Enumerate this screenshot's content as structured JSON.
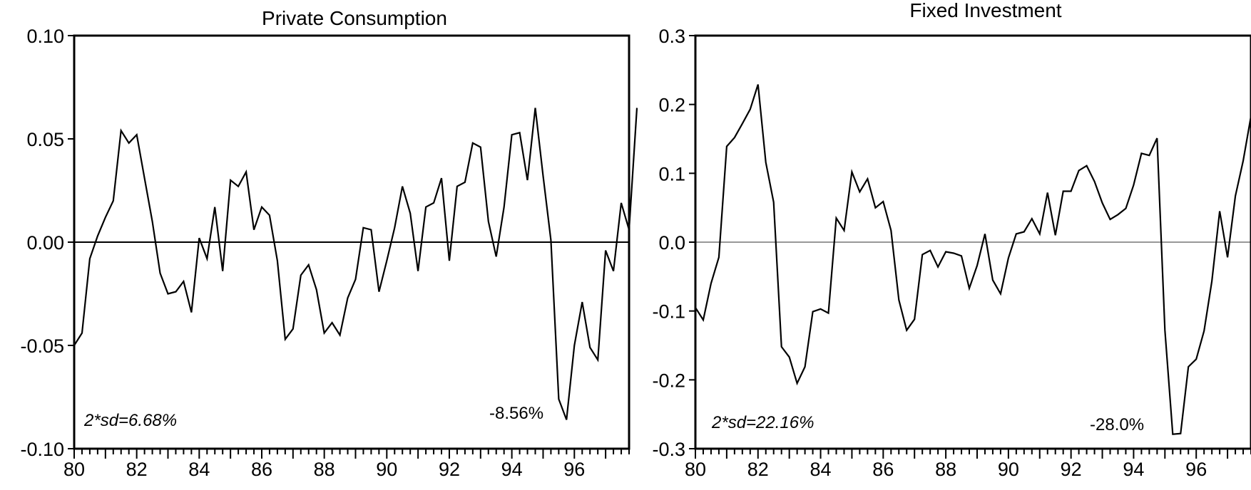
{
  "chart_data": [
    {
      "type": "line",
      "title": "Private Consumption",
      "xlabel": "",
      "ylabel": "",
      "ylim": [
        -0.1,
        0.1
      ],
      "xlim": [
        1980,
        1997.75
      ],
      "yticks": [
        "-0.10",
        "-0.05",
        "0.00",
        "0.05",
        "0.10"
      ],
      "xticks": [
        "80",
        "82",
        "84",
        "86",
        "88",
        "90",
        "92",
        "94",
        "96"
      ],
      "zero_line": true,
      "annotations": {
        "sd": "2*sd=6.68%",
        "min": "-8.56%"
      },
      "series": [
        {
          "x_start": 1980.0,
          "x_step": 0.25,
          "values": [
            -0.05,
            -0.044,
            -0.008,
            0.003,
            0.012,
            0.02,
            0.054,
            0.048,
            0.052,
            0.031,
            0.01,
            -0.015,
            -0.025,
            -0.024,
            -0.019,
            -0.034,
            0.002,
            -0.008,
            0.017,
            -0.014,
            0.03,
            0.027,
            0.034,
            0.006,
            0.017,
            0.013,
            -0.009,
            -0.047,
            -0.042,
            -0.016,
            -0.011,
            -0.023,
            -0.044,
            -0.039,
            -0.045,
            -0.027,
            -0.018,
            0.007,
            0.006,
            -0.024,
            -0.009,
            0.007,
            0.027,
            0.014,
            -0.014,
            0.017,
            0.019,
            0.031,
            -0.009,
            0.027,
            0.029,
            0.048,
            0.046,
            0.01,
            -0.007,
            0.017,
            0.052,
            0.053,
            0.03,
            0.065,
            0.032,
            0.001,
            -0.076,
            -0.086,
            -0.05,
            -0.029,
            -0.051,
            -0.057,
            -0.004,
            -0.014,
            0.019,
            0.006,
            0.065
          ]
        }
      ]
    },
    {
      "type": "line",
      "title": "Fixed Investment",
      "xlabel": "",
      "ylabel": "",
      "ylim": [
        -0.3,
        0.3
      ],
      "xlim": [
        1980,
        1997.75
      ],
      "yticks": [
        "-0.3",
        "-0.2",
        "-0.1",
        "0.0",
        "0.1",
        "0.2",
        "0.3"
      ],
      "xticks": [
        "80",
        "82",
        "84",
        "86",
        "88",
        "90",
        "92",
        "94",
        "96"
      ],
      "zero_line": true,
      "annotations": {
        "sd": "2*sd=22.16%",
        "min": "-28.0%"
      },
      "series": [
        {
          "x_start": 1980.0,
          "x_step": 0.25,
          "values": [
            -0.095,
            -0.113,
            -0.06,
            -0.022,
            0.139,
            0.152,
            0.172,
            0.193,
            0.229,
            0.116,
            0.058,
            -0.152,
            -0.167,
            -0.205,
            -0.181,
            -0.101,
            -0.097,
            -0.103,
            0.035,
            0.017,
            0.102,
            0.073,
            0.092,
            0.05,
            0.059,
            0.017,
            -0.084,
            -0.128,
            -0.112,
            -0.018,
            -0.012,
            -0.036,
            -0.014,
            -0.016,
            -0.02,
            -0.067,
            -0.034,
            0.012,
            -0.055,
            -0.075,
            -0.023,
            0.012,
            0.015,
            0.034,
            0.012,
            0.072,
            0.01,
            0.074,
            0.074,
            0.104,
            0.111,
            0.088,
            0.057,
            0.033,
            0.04,
            0.049,
            0.083,
            0.129,
            0.126,
            0.151,
            -0.128,
            -0.279,
            -0.278,
            -0.181,
            -0.17,
            -0.129,
            -0.057,
            0.045,
            -0.022,
            0.067,
            0.118,
            0.183
          ]
        }
      ]
    }
  ]
}
